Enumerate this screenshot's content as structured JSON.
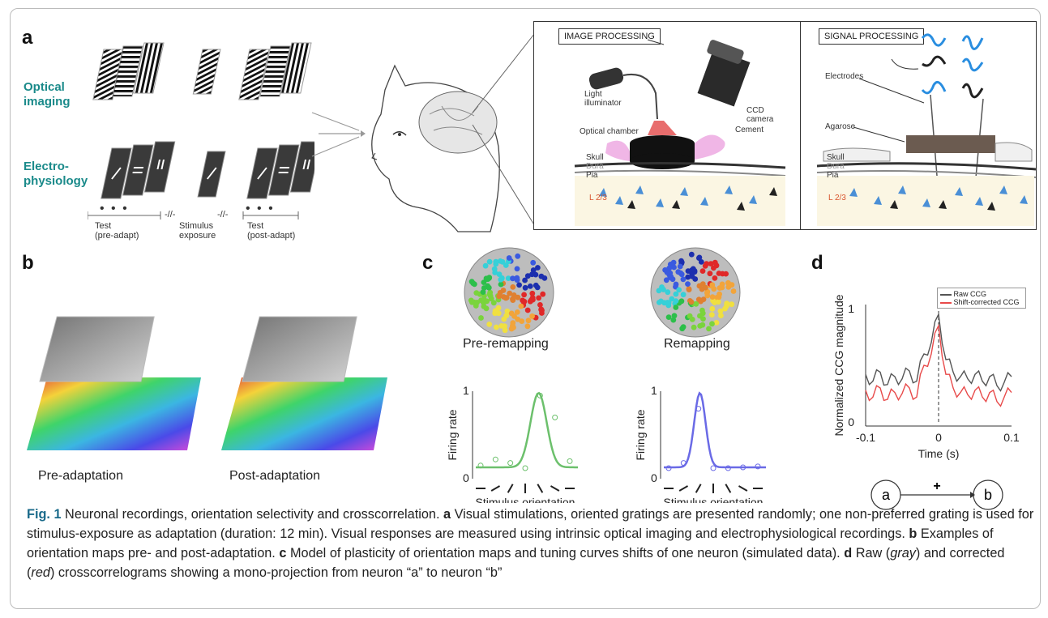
{
  "panel_labels": {
    "a": "a",
    "b": "b",
    "c": "c",
    "d": "d"
  },
  "panel_a": {
    "row1_label_line1": "Optical",
    "row1_label_line2": "imaging",
    "row2_label_line1": "Electro-",
    "row2_label_line2": "physiology",
    "dots": "• • •",
    "break_mark": "-//-",
    "test_pre_line1": "Test",
    "test_pre_line2": "(pre-adapt)",
    "stim_line1": "Stimulus",
    "stim_line2": "exposure",
    "test_post_line1": "Test",
    "test_post_line2": "(post-adapt)",
    "image_processing": "IMAGE PROCESSING",
    "light_illuminator_line1": "Light",
    "light_illuminator_line2": "illuminator",
    "ccd_line1": "CCD",
    "ccd_line2": "camera",
    "optical_chamber": "Optical chamber",
    "cement": "Cement",
    "skull": "Skull",
    "dura": "Dura",
    "pia": "Pia",
    "layer": "L 2/3",
    "signal_processing": "SIGNAL PROCESSING",
    "electrodes": "Electrodes",
    "agarose": "Agarose"
  },
  "panel_b": {
    "pre_label": "Pre-adaptation",
    "post_label": "Post-adaptation"
  },
  "panel_c": {
    "pre_title": "Pre-remapping",
    "post_title": "Remapping",
    "ylabel": "Firing rate",
    "xlabel": "Stimulus orientation",
    "y_ticks": [
      "0",
      "1"
    ]
  },
  "panel_d": {
    "ylabel": "Normalized CCG magnitude",
    "xlabel": "Time (s)",
    "x_ticks": [
      "-0.1",
      "0",
      "0.1"
    ],
    "y_ticks": [
      "0",
      "1"
    ],
    "legend_raw": "Raw CCG",
    "legend_shift": "Shift-corrected CCG",
    "node_a": "a",
    "node_b": "b",
    "edge_sign": "+",
    "colors": {
      "raw": "#555555",
      "shift": "#e84a4a"
    }
  },
  "chart_data": [
    {
      "type": "line",
      "ylabel": "Firing rate",
      "xlabel": "Stimulus orientation",
      "ylim": [
        0,
        1
      ],
      "series": [
        {
          "values": [
            0.15,
            0.22,
            0.18,
            0.12,
            0.95,
            0.7,
            0.2
          ]
        }
      ],
      "color": "#6cc06c"
    },
    {
      "type": "line",
      "ylabel": "Firing rate",
      "xlabel": "Stimulus orientation",
      "ylim": [
        0,
        1
      ],
      "series": [
        {
          "values": [
            0.12,
            0.18,
            0.8,
            0.12,
            0.12,
            0.13,
            0.14
          ]
        }
      ],
      "color": "#6a6ae6"
    },
    {
      "type": "line",
      "xlabel": "Time (s)",
      "ylabel": "Normalized CCG magnitude",
      "xlim": [
        -0.1,
        0.1
      ],
      "ylim": [
        0,
        1
      ],
      "x": [
        -0.1,
        -0.09,
        -0.08,
        -0.07,
        -0.06,
        -0.05,
        -0.04,
        -0.03,
        -0.02,
        -0.01,
        0,
        0.01,
        0.02,
        0.03,
        0.04,
        0.05,
        0.06,
        0.07,
        0.08,
        0.09,
        0.1
      ],
      "series": [
        {
          "name": "Raw CCG",
          "values": [
            0.42,
            0.36,
            0.44,
            0.33,
            0.4,
            0.38,
            0.45,
            0.36,
            0.6,
            0.7,
            0.95,
            0.55,
            0.44,
            0.4,
            0.38,
            0.42,
            0.36,
            0.4,
            0.32,
            0.35,
            0.4
          ]
        },
        {
          "name": "Shift-corrected CCG",
          "values": [
            0.28,
            0.22,
            0.3,
            0.2,
            0.26,
            0.25,
            0.3,
            0.22,
            0.5,
            0.6,
            0.85,
            0.42,
            0.3,
            0.26,
            0.24,
            0.28,
            0.22,
            0.26,
            0.18,
            0.22,
            0.26
          ]
        }
      ]
    }
  ],
  "caption": {
    "fig": "Fig. 1",
    "title": " Neuronal recordings, orientation selectivity and crosscorrelation. ",
    "a_label": "a",
    "a_text": " Visual stimulations, oriented gratings are presented randomly; one non-preferred grating is used for stimulus-exposure as adaptation (duration: 12 min). Visual responses are measured using intrinsic optical imaging and electrophysiological recordings. ",
    "b_label": "b",
    "b_text": " Examples of orientation maps pre- and post-adaptation. ",
    "c_label": "c",
    "c_text": " Model of plasticity of orientation maps and tuning curves shifts of one neuron (simulated data). ",
    "d_label": "d",
    "d_text1": " Raw (",
    "gray": "gray",
    "d_text2": ") and corrected (",
    "red": "red",
    "d_text3": ") crosscorrelograms showing a mono-projection from neuron “a” to neuron “b”"
  }
}
